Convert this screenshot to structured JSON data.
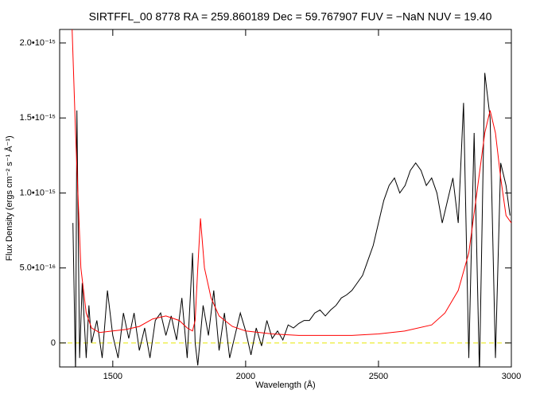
{
  "chart_data": {
    "type": "line",
    "title": "SIRTFFL_00 8778 RA = 259.860189 Dec =  59.767907 FUV =  −NaN NUV = 19.40",
    "xlabel": "Wavelength (Å)",
    "ylabel": "Flux Density (ergs cm⁻² s⁻¹ Å⁻¹)",
    "xlim": [
      1300,
      3000
    ],
    "ylim": [
      -1.6e-16,
      2.09e-15
    ],
    "xticks": [
      1500,
      2000,
      2500,
      3000
    ],
    "yticks": [
      0,
      {
        "value": 5e-16,
        "label": "5.0•10⁻¹⁶"
      },
      {
        "value": 1e-15,
        "label": "1.0•10⁻¹⁵"
      },
      {
        "value": 1.5e-15,
        "label": "1.5•10⁻¹⁵"
      },
      {
        "value": 2e-15,
        "label": "2.0•10⁻¹⁵"
      }
    ],
    "hline": {
      "y": 0,
      "color": "#e6e600",
      "style": "dashed"
    },
    "series": [
      {
        "color": "#000000",
        "x": [
          1350,
          1360,
          1365,
          1375,
          1385,
          1400,
          1410,
          1420,
          1440,
          1460,
          1480,
          1500,
          1520,
          1540,
          1560,
          1580,
          1600,
          1620,
          1640,
          1660,
          1680,
          1700,
          1720,
          1740,
          1760,
          1780,
          1800,
          1810,
          1820,
          1840,
          1860,
          1880,
          1900,
          1920,
          1940,
          1960,
          1980,
          2000,
          2020,
          2040,
          2060,
          2080,
          2100,
          2120,
          2140,
          2160,
          2180,
          2200,
          2220,
          2240,
          2260,
          2280,
          2300,
          2320,
          2340,
          2360,
          2380,
          2400,
          2420,
          2440,
          2460,
          2480,
          2500,
          2520,
          2540,
          2560,
          2580,
          2600,
          2620,
          2640,
          2660,
          2680,
          2700,
          2720,
          2740,
          2760,
          2780,
          2800,
          2820,
          2840,
          2860,
          2880,
          2900,
          2920,
          2940,
          2960,
          2980,
          2995
        ],
        "values": [
          8e-16,
          -2e-16,
          1.55e-15,
          -1e-16,
          4e-16,
          -1e-16,
          2.5e-16,
          0,
          1.5e-16,
          -1e-16,
          3.5e-16,
          5e-17,
          -1e-16,
          2e-16,
          3e-17,
          2e-16,
          -5e-17,
          1e-16,
          -1e-16,
          1.5e-16,
          2e-16,
          5e-17,
          1.8e-16,
          2e-17,
          3e-16,
          -1e-16,
          6e-16,
          0,
          -1.5e-16,
          2.5e-16,
          5e-17,
          3.5e-16,
          -5e-17,
          2e-16,
          -1e-16,
          5e-17,
          2e-16,
          8e-17,
          -8e-17,
          1e-16,
          -2e-17,
          1.5e-16,
          3e-17,
          8e-17,
          2e-17,
          1.2e-16,
          1e-16,
          1.3e-16,
          1.5e-16,
          1.5e-16,
          2e-16,
          2.2e-16,
          1.8e-16,
          2.2e-16,
          2.5e-16,
          3e-16,
          3.2e-16,
          3.5e-16,
          4e-16,
          4.5e-16,
          5.5e-16,
          6.5e-16,
          8e-16,
          9.5e-16,
          1.05e-15,
          1.1e-15,
          1e-15,
          1.05e-15,
          1.15e-15,
          1.2e-15,
          1.15e-15,
          1.05e-15,
          1.1e-15,
          1e-15,
          8e-16,
          9.5e-16,
          1.1e-15,
          8e-16,
          1.6e-15,
          -1e-16,
          1.4e-15,
          -2e-16,
          1.8e-15,
          1.5e-15,
          -1e-16,
          1.2e-15,
          1.05e-15,
          8.5e-16
        ]
      },
      {
        "color": "#ff0000",
        "x": [
          1345,
          1360,
          1380,
          1400,
          1420,
          1450,
          1500,
          1550,
          1600,
          1650,
          1700,
          1750,
          1780,
          1800,
          1810,
          1820,
          1830,
          1845,
          1870,
          1900,
          1950,
          2000,
          2100,
          2200,
          2300,
          2400,
          2500,
          2600,
          2700,
          2750,
          2800,
          2840,
          2870,
          2900,
          2920,
          2940,
          2960,
          2980,
          3000
        ],
        "values": [
          2.2e-15,
          1.4e-15,
          5e-16,
          2e-16,
          1e-16,
          7e-17,
          8e-17,
          9e-17,
          1.1e-16,
          1.6e-16,
          1.8e-16,
          1.5e-16,
          1e-16,
          8e-17,
          1.5e-16,
          5e-16,
          8.3e-16,
          5e-16,
          3e-16,
          1.8e-16,
          1.1e-16,
          8e-17,
          6e-17,
          5e-17,
          5e-17,
          5e-17,
          6e-17,
          8e-17,
          1.2e-16,
          2e-16,
          3.5e-16,
          6e-16,
          1e-15,
          1.4e-15,
          1.55e-15,
          1.4e-15,
          1.1e-15,
          8.5e-16,
          8e-16
        ]
      }
    ]
  }
}
